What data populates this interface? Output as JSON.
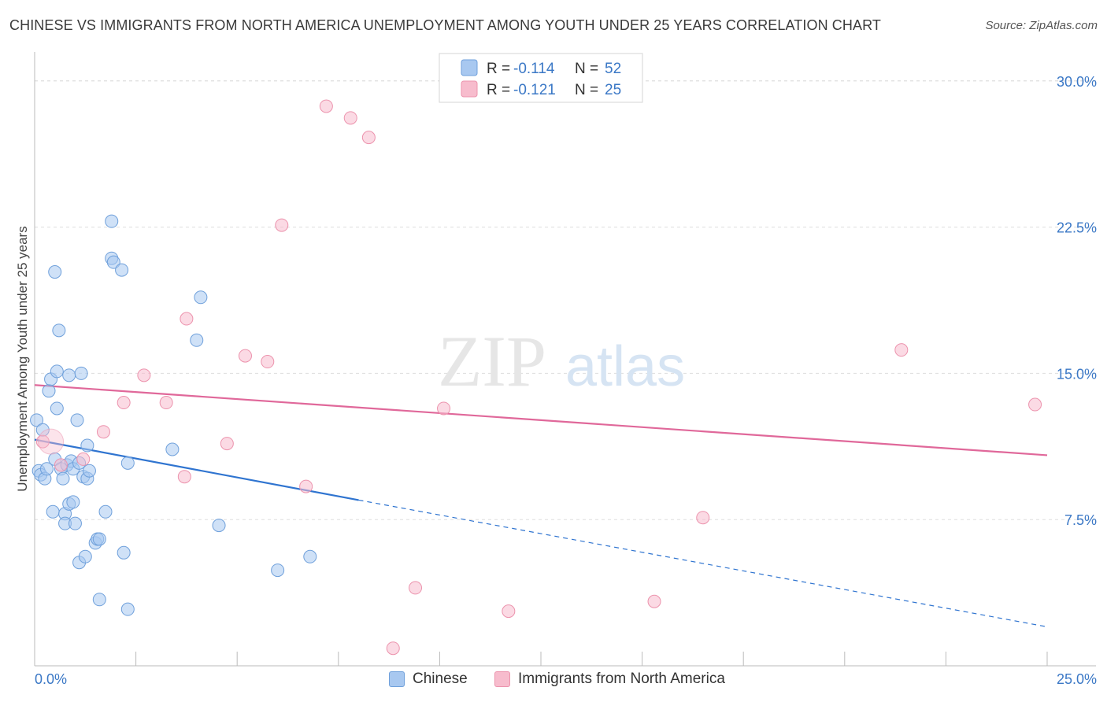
{
  "title": "CHINESE VS IMMIGRANTS FROM NORTH AMERICA UNEMPLOYMENT AMONG YOUTH UNDER 25 YEARS CORRELATION CHART",
  "source": "Source: ZipAtlas.com",
  "watermark": {
    "zip": "ZIP",
    "atlas": "atlas"
  },
  "legend_top": {
    "chinese": {
      "r_label": "R =",
      "r_value": "-0.114",
      "n_label": "N =",
      "n_value": "52"
    },
    "immigrants": {
      "r_label": "R =",
      "r_value": "-0.121",
      "n_label": "N =",
      "n_value": "25"
    }
  },
  "legend_bottom": {
    "chinese": "Chinese",
    "immigrants": "Immigrants from North America"
  },
  "colors": {
    "chinese_fill": "#a8c8f0",
    "chinese_stroke": "#6fa0db",
    "chinese_line": "#2f74d0",
    "immigrants_fill": "#f7bccd",
    "immigrants_stroke": "#ec93ad",
    "immigrants_line": "#e0689a",
    "tick_text": "#3b78c6",
    "grid": "#dddddd"
  },
  "chart_data": {
    "type": "scatter",
    "title": "CHINESE VS IMMIGRANTS FROM NORTH AMERICA UNEMPLOYMENT AMONG YOUTH UNDER 25 YEARS CORRELATION CHART",
    "xlabel": "",
    "ylabel": "Unemployment Among Youth under 25 years",
    "xlim": [
      0,
      25
    ],
    "ylim": [
      0,
      31
    ],
    "x_tick_labels": [
      "0.0%",
      "25.0%"
    ],
    "y_ticks": [
      7.5,
      15.0,
      22.5,
      30.0
    ],
    "y_tick_labels": [
      "7.5%",
      "15.0%",
      "22.5%",
      "30.0%"
    ],
    "grid": true,
    "legend_placement": "top-center",
    "series": [
      {
        "name": "Chinese",
        "points": [
          [
            0.05,
            12.6
          ],
          [
            0.1,
            10.0
          ],
          [
            0.15,
            9.8
          ],
          [
            0.2,
            12.1
          ],
          [
            0.25,
            9.6
          ],
          [
            0.3,
            10.1
          ],
          [
            0.35,
            14.1
          ],
          [
            0.4,
            14.7
          ],
          [
            0.45,
            7.9
          ],
          [
            0.5,
            10.6
          ],
          [
            0.55,
            13.2
          ],
          [
            0.5,
            20.2
          ],
          [
            0.55,
            15.1
          ],
          [
            0.6,
            17.2
          ],
          [
            0.65,
            10.1
          ],
          [
            0.7,
            9.6
          ],
          [
            0.75,
            7.8
          ],
          [
            0.75,
            7.3
          ],
          [
            0.8,
            10.3
          ],
          [
            0.85,
            8.3
          ],
          [
            0.85,
            14.9
          ],
          [
            0.9,
            10.5
          ],
          [
            0.95,
            10.1
          ],
          [
            0.95,
            8.4
          ],
          [
            1.0,
            7.3
          ],
          [
            1.05,
            12.6
          ],
          [
            1.1,
            5.3
          ],
          [
            1.1,
            10.4
          ],
          [
            1.15,
            15.0
          ],
          [
            1.2,
            9.7
          ],
          [
            1.25,
            5.6
          ],
          [
            1.3,
            11.3
          ],
          [
            1.3,
            9.6
          ],
          [
            1.35,
            10.0
          ],
          [
            1.5,
            6.3
          ],
          [
            1.55,
            6.5
          ],
          [
            1.6,
            6.5
          ],
          [
            1.6,
            3.4
          ],
          [
            1.75,
            7.9
          ],
          [
            1.9,
            22.8
          ],
          [
            1.9,
            20.9
          ],
          [
            1.95,
            20.7
          ],
          [
            2.15,
            20.3
          ],
          [
            2.2,
            5.8
          ],
          [
            2.3,
            2.9
          ],
          [
            2.3,
            10.4
          ],
          [
            3.4,
            11.1
          ],
          [
            4.0,
            16.7
          ],
          [
            4.1,
            18.9
          ],
          [
            4.55,
            7.2
          ],
          [
            6.0,
            4.9
          ],
          [
            6.8,
            5.6
          ]
        ]
      },
      {
        "name": "Immigrants from North America",
        "points": [
          [
            0.2,
            11.5
          ],
          [
            0.65,
            10.3
          ],
          [
            1.2,
            10.6
          ],
          [
            1.7,
            12.0
          ],
          [
            2.2,
            13.5
          ],
          [
            2.7,
            14.9
          ],
          [
            3.25,
            13.5
          ],
          [
            3.7,
            9.7
          ],
          [
            3.75,
            17.8
          ],
          [
            4.75,
            11.4
          ],
          [
            5.2,
            15.9
          ],
          [
            5.75,
            15.6
          ],
          [
            6.1,
            22.6
          ],
          [
            6.7,
            9.2
          ],
          [
            7.2,
            28.7
          ],
          [
            7.8,
            28.1
          ],
          [
            8.25,
            27.1
          ],
          [
            8.85,
            0.9
          ],
          [
            9.4,
            4.0
          ],
          [
            10.1,
            13.2
          ],
          [
            11.7,
            2.8
          ],
          [
            15.3,
            3.3
          ],
          [
            16.5,
            7.6
          ],
          [
            21.4,
            16.2
          ],
          [
            24.7,
            13.4
          ]
        ]
      }
    ],
    "trendlines": [
      {
        "series": "Chinese",
        "solid": [
          [
            0,
            11.6
          ],
          [
            8.0,
            8.5
          ]
        ],
        "dashed": [
          [
            8.0,
            8.5
          ],
          [
            25.0,
            2.0
          ]
        ]
      },
      {
        "series": "Immigrants from North America",
        "solid": [
          [
            0,
            14.4
          ],
          [
            25.0,
            10.8
          ]
        ]
      }
    ]
  }
}
